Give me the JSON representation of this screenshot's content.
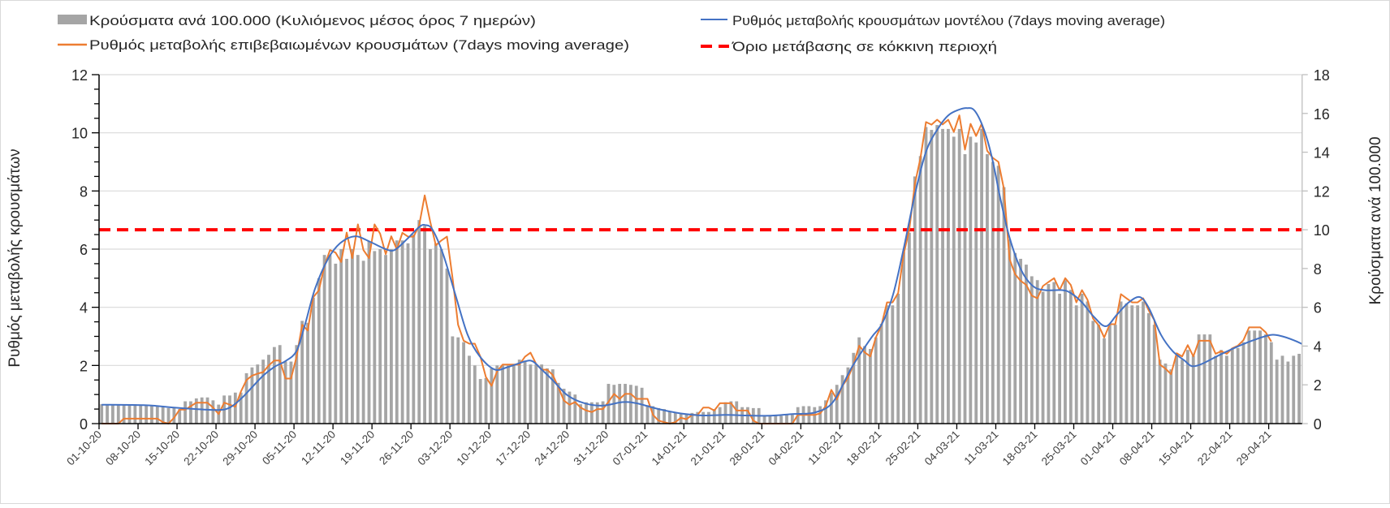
{
  "colors": {
    "bars": "#a5a5a5",
    "orange": "#ed7d31",
    "blue": "#4472c4",
    "threshold": "#ff0000",
    "grid": "#d9d9d9"
  },
  "legend": {
    "bars": "Κρούσματα ανά 100.000 (Κυλιόμενος μέσος όρος 7 ημερών)",
    "orange": "Ρυθμός μεταβολής επιβεβαιωμένων κρουσμάτων (7days moving average)",
    "blue": "Ρυθμός μεταβολής κρουσμάτων μοντέλου (7days moving average)",
    "threshold": "Όριο μετάβασης σε κόκκινη περιοχή"
  },
  "chart_data": {
    "type": "bar+line",
    "title": "",
    "ylabel": "Ρυθμός μεταβολής κρουσμάτων",
    "y2label": "Κρούσματα ανά 100.000",
    "ylim": [
      0,
      12
    ],
    "y2lim": [
      0,
      18
    ],
    "yticks": [
      "0",
      "2",
      "4",
      "6",
      "8",
      "10",
      "12"
    ],
    "y2ticks": [
      "0",
      "2",
      "4",
      "6",
      "8",
      "10",
      "12",
      "14",
      "16",
      "18"
    ],
    "grid": true,
    "legend_position": "top",
    "x_start_date": "01-10-20",
    "x_tick_labels": [
      "01-10-20",
      "08-10-20",
      "15-10-20",
      "22-10-20",
      "29-10-20",
      "05-11-20",
      "12-11-20",
      "19-11-20",
      "26-11-20",
      "03-12-20",
      "10-12-20",
      "17-12-20",
      "24-12-20",
      "31-12-20",
      "07-01-21",
      "14-01-21",
      "21-01-21",
      "28-01-21",
      "04-02-21",
      "11-02-21",
      "18-02-21",
      "25-02-21",
      "04-03-21",
      "11-03-21",
      "18-03-21",
      "25-03-21",
      "01-04-21",
      "08-04-21",
      "15-04-21",
      "22-04-21",
      "29-04-21"
    ],
    "threshold": {
      "axis": "y2",
      "value": 10
    },
    "series": [
      {
        "name": "Κρούσματα ανά 100.000 (Κυλιόμενος μέσος όρος 7 ημερών)",
        "type": "bar",
        "axis": "y2",
        "x": "daily index from 01-10-20",
        "values": [
          1.0,
          0.95,
          0.95,
          0.95,
          0.95,
          0.95,
          1.0,
          0.95,
          0.95,
          0.9,
          0.9,
          0.85,
          0.8,
          0.8,
          0.75,
          1.15,
          1.15,
          1.3,
          1.35,
          1.35,
          1.2,
          0.98,
          1.45,
          1.45,
          1.6,
          1.6,
          2.6,
          2.9,
          3.05,
          3.3,
          3.55,
          3.95,
          4.05,
          3.2,
          3.2,
          4.05,
          5.3,
          5.2,
          6.5,
          7.5,
          8.7,
          8.7,
          8.25,
          9.0,
          8.5,
          9.0,
          8.7,
          8.4,
          9.4,
          8.9,
          9.0,
          8.7,
          9.0,
          9.45,
          9.45,
          9.3,
          9.75,
          10.5,
          10.2,
          9.0,
          9.3,
          9.0,
          8.0,
          4.5,
          4.45,
          4.2,
          3.5,
          3.0,
          2.3,
          2.35,
          2.85,
          3.0,
          3.0,
          3.0,
          3.0,
          3.3,
          3.25,
          3.05,
          3.05,
          3.05,
          2.85,
          2.8,
          2.1,
          1.8,
          1.65,
          1.5,
          1.0,
          1.1,
          1.1,
          1.1,
          1.15,
          2.05,
          2.0,
          2.05,
          2.05,
          2.0,
          1.95,
          1.85,
          0.95,
          0.9,
          0.8,
          0.75,
          0.65,
          0.55,
          0.5,
          0.5,
          0.55,
          0.6,
          0.6,
          0.6,
          0.75,
          0.85,
          1.1,
          1.15,
          1.15,
          0.85,
          0.85,
          0.8,
          0.8,
          0.4,
          0.4,
          0.4,
          0.4,
          0.45,
          0.5,
          0.85,
          0.9,
          0.9,
          0.85,
          0.9,
          1.2,
          1.6,
          2.0,
          2.5,
          2.9,
          3.65,
          4.45,
          4.0,
          3.85,
          4.45,
          5.15,
          6.1,
          6.1,
          6.7,
          8.85,
          9.85,
          12.75,
          13.8,
          15.3,
          15.15,
          15.4,
          15.2,
          15.2,
          14.8,
          15.2,
          13.9,
          14.8,
          14.5,
          15.2,
          13.9,
          13.5,
          13.3,
          12.2,
          9.5,
          8.8,
          8.5,
          8.2,
          7.6,
          7.4,
          6.8,
          7.2,
          7.3,
          6.7,
          7.4,
          6.9,
          6.1,
          6.7,
          6.3,
          5.3,
          5.1,
          4.4,
          5.1,
          5.1,
          6.3,
          6.2,
          6.1,
          6.1,
          6.3,
          5.7,
          5.1,
          3.3,
          3.1,
          2.8,
          3.5,
          3.3,
          3.8,
          3.5,
          4.6,
          4.6,
          4.6,
          3.5,
          3.8,
          3.5,
          3.9,
          3.9,
          4.2,
          4.8,
          4.8,
          4.8,
          4.6,
          4.2,
          3.3,
          3.5,
          3.2,
          3.5,
          3.6
        ]
      },
      {
        "name": "Ρυθμός μεταβολής επιβεβαιωμένων κρουσμάτων (7days moving average)",
        "type": "line",
        "axis": "y",
        "x": "daily index from 01-10-20",
        "values": [
          0,
          0,
          0,
          0,
          0.17,
          0.17,
          0.17,
          0.17,
          0.17,
          0.17,
          0.17,
          0.05,
          0,
          0.2,
          0.48,
          0.48,
          0.6,
          0.72,
          0.72,
          0.72,
          0.55,
          0.33,
          0.72,
          0.65,
          0.58,
          1.1,
          1.5,
          1.65,
          1.72,
          1.77,
          2.0,
          2.17,
          2.17,
          1.55,
          1.55,
          2.3,
          3.4,
          3.2,
          4.35,
          4.58,
          5.42,
          5.97,
          5.88,
          5.56,
          6.57,
          5.69,
          6.85,
          5.97,
          5.69,
          6.85,
          6.53,
          5.83,
          6.44,
          5.99,
          6.56,
          6.43,
          6.43,
          6.81,
          7.85,
          6.94,
          6.13,
          6.3,
          6.43,
          5.0,
          3.4,
          2.85,
          2.75,
          2.75,
          2.3,
          1.6,
          1.3,
          1.8,
          2.03,
          2.03,
          2.03,
          2.03,
          2.3,
          2.44,
          2.05,
          1.86,
          1.85,
          1.67,
          1.25,
          0.79,
          0.65,
          0.74,
          0.55,
          0.45,
          0.4,
          0.5,
          0.5,
          0.75,
          1.02,
          0.85,
          1.02,
          1.02,
          0.85,
          0.85,
          0.85,
          0.3,
          0.1,
          0.05,
          0,
          0.05,
          0.2,
          0.15,
          0.3,
          0.3,
          0.55,
          0.55,
          0.45,
          0.7,
          0.7,
          0.7,
          0.45,
          0.45,
          0.45,
          0.1,
          0,
          0,
          0,
          0,
          0,
          0,
          0,
          0.3,
          0.3,
          0.3,
          0.3,
          0.35,
          0.6,
          1.16,
          0.83,
          1.3,
          1.57,
          2.04,
          2.68,
          2.45,
          2.31,
          2.96,
          3.38,
          4.17,
          4.17,
          4.49,
          5.83,
          6.67,
          8.24,
          9.12,
          10.37,
          10.28,
          10.45,
          10.29,
          10.45,
          10.03,
          10.6,
          9.42,
          10.31,
          9.89,
          10.31,
          9.38,
          9.14,
          9.0,
          8.07,
          5.66,
          5.14,
          4.91,
          4.77,
          4.4,
          4.31,
          4.73,
          4.87,
          5.0,
          4.59,
          5.0,
          4.77,
          4.17,
          4.59,
          4.26,
          3.61,
          3.38,
          2.96,
          3.42,
          3.42,
          4.45,
          4.31,
          4.17,
          4.17,
          4.31,
          3.89,
          3.56,
          2.03,
          1.89,
          1.7,
          2.42,
          2.31,
          2.7,
          2.31,
          2.85,
          2.85,
          2.85,
          2.4,
          2.49,
          2.4,
          2.59,
          2.68,
          2.87,
          3.31,
          3.31,
          3.31,
          3.14,
          2.82
        ]
      },
      {
        "name": "Ρυθμός μεταβολής κρουσμάτων μοντέλου (7days moving average)",
        "type": "line",
        "axis": "y",
        "smooth": true,
        "points": [
          [
            0,
            0.65
          ],
          [
            8,
            0.63
          ],
          [
            13,
            0.55
          ],
          [
            17,
            0.5
          ],
          [
            21,
            0.47
          ],
          [
            23,
            0.55
          ],
          [
            25,
            0.85
          ],
          [
            27,
            1.25
          ],
          [
            29,
            1.65
          ],
          [
            31,
            1.95
          ],
          [
            33,
            2.15
          ],
          [
            35,
            2.5
          ],
          [
            36.5,
            3.4
          ],
          [
            38.3,
            4.63
          ],
          [
            40.6,
            5.65
          ],
          [
            42.8,
            6.2
          ],
          [
            45.5,
            6.44
          ],
          [
            48.2,
            6.25
          ],
          [
            51,
            6.0
          ],
          [
            52.6,
            5.97
          ],
          [
            54.8,
            6.34
          ],
          [
            57,
            6.76
          ],
          [
            58.1,
            6.83
          ],
          [
            59.4,
            6.67
          ],
          [
            61.3,
            5.83
          ],
          [
            63.5,
            4.44
          ],
          [
            65.7,
            3.06
          ],
          [
            67.9,
            2.31
          ],
          [
            70.6,
            1.86
          ],
          [
            73,
            1.95
          ],
          [
            76,
            2.14
          ],
          [
            77.4,
            2.14
          ],
          [
            79,
            1.86
          ],
          [
            81,
            1.49
          ],
          [
            83.6,
            0.98
          ],
          [
            86.7,
            0.7
          ],
          [
            90,
            0.62
          ],
          [
            93.5,
            0.74
          ],
          [
            96,
            0.7
          ],
          [
            100,
            0.5
          ],
          [
            104,
            0.35
          ],
          [
            108,
            0.28
          ],
          [
            112,
            0.3
          ],
          [
            116,
            0.28
          ],
          [
            120,
            0.27
          ],
          [
            124,
            0.33
          ],
          [
            128,
            0.38
          ],
          [
            131.3,
            0.74
          ],
          [
            134.7,
            1.94
          ],
          [
            138.2,
            2.96
          ],
          [
            140.1,
            3.43
          ],
          [
            142.1,
            4.44
          ],
          [
            144,
            6.02
          ],
          [
            146,
            7.87
          ],
          [
            148,
            9.35
          ],
          [
            150,
            10.1
          ],
          [
            152,
            10.6
          ],
          [
            154,
            10.8
          ],
          [
            155.4,
            10.85
          ],
          [
            156.7,
            10.77
          ],
          [
            158.3,
            10.17
          ],
          [
            159.8,
            9.19
          ],
          [
            161.4,
            7.7
          ],
          [
            163,
            6.4
          ],
          [
            165.1,
            5.28
          ],
          [
            167.2,
            4.73
          ],
          [
            169.3,
            4.59
          ],
          [
            172.4,
            4.59
          ],
          [
            174,
            4.49
          ],
          [
            176,
            4.17
          ],
          [
            178.2,
            3.66
          ],
          [
            180.3,
            3.35
          ],
          [
            182.3,
            3.75
          ],
          [
            184.4,
            4.17
          ],
          [
            186.4,
            4.35
          ],
          [
            188,
            3.98
          ],
          [
            190.2,
            3.05
          ],
          [
            192.3,
            2.49
          ],
          [
            194.4,
            2.17
          ],
          [
            195.7,
            1.98
          ],
          [
            197.5,
            2.05
          ],
          [
            200.6,
            2.35
          ],
          [
            203.7,
            2.63
          ],
          [
            206.8,
            2.87
          ],
          [
            209.9,
            3.05
          ],
          [
            212,
            3.0
          ],
          [
            214,
            2.87
          ],
          [
            215.5,
            2.74
          ]
        ]
      }
    ]
  }
}
